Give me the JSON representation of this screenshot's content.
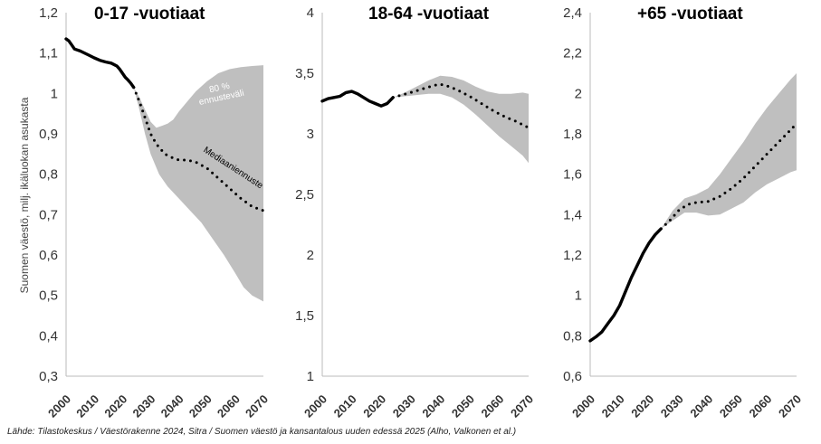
{
  "source_note": "Lähde: Tilastokeskus / Väestörakenne 2024, Sitra / Suomen väestö ja kansantalous uuden edessä 2025 (Alho, Valkonen et al.)",
  "colors": {
    "band": "#bfbfbf",
    "line": "#000000",
    "axis": "#bbbbbb"
  },
  "chart_data": [
    {
      "type": "line",
      "title": "0-17 -vuotiaat",
      "ylabel": "Suomen väestö, milj. ikäluokan asukasta",
      "xlim": [
        2000,
        2070
      ],
      "ylim": [
        0.3,
        1.2
      ],
      "xticks": [
        2000,
        2010,
        2020,
        2030,
        2040,
        2050,
        2060,
        2070
      ],
      "yticks": [
        "0,3",
        "0,4",
        "0,5",
        "0,6",
        "0,7",
        "0,8",
        "0,9",
        "1",
        "1,1",
        "1,2"
      ],
      "ytick_values": [
        0.3,
        0.4,
        0.5,
        0.6,
        0.7,
        0.8,
        0.9,
        1.0,
        1.1,
        1.2
      ],
      "annotations": {
        "band_label": [
          "80 %",
          "ennusteväli"
        ],
        "median_label": "Mediaaniennuste"
      },
      "observed": {
        "x": [
          2000,
          2001,
          2002,
          2003,
          2005,
          2008,
          2010,
          2012,
          2014,
          2016,
          2018,
          2019,
          2020,
          2021,
          2022,
          2023,
          2024
        ],
        "y": [
          1.135,
          1.13,
          1.12,
          1.11,
          1.105,
          1.095,
          1.088,
          1.082,
          1.078,
          1.075,
          1.068,
          1.06,
          1.05,
          1.04,
          1.033,
          1.025,
          1.015
        ]
      },
      "median": {
        "x": [
          2024,
          2026,
          2028,
          2030,
          2032,
          2035,
          2038,
          2040,
          2043,
          2046,
          2050,
          2054,
          2058,
          2062,
          2066,
          2070
        ],
        "y": [
          1.015,
          0.98,
          0.94,
          0.9,
          0.875,
          0.85,
          0.84,
          0.835,
          0.835,
          0.83,
          0.815,
          0.79,
          0.765,
          0.74,
          0.72,
          0.71
        ]
      },
      "band_upper": {
        "x": [
          2024,
          2026,
          2028,
          2030,
          2032,
          2034,
          2036,
          2038,
          2040,
          2043,
          2046,
          2050,
          2054,
          2058,
          2062,
          2066,
          2070
        ],
        "y": [
          1.015,
          0.99,
          0.96,
          0.93,
          0.915,
          0.92,
          0.925,
          0.935,
          0.955,
          0.98,
          1.005,
          1.03,
          1.05,
          1.06,
          1.065,
          1.068,
          1.07
        ]
      },
      "band_lower": {
        "x": [
          2024,
          2026,
          2028,
          2030,
          2033,
          2036,
          2040,
          2044,
          2048,
          2052,
          2056,
          2060,
          2063,
          2066,
          2070
        ],
        "y": [
          1.015,
          0.96,
          0.9,
          0.85,
          0.8,
          0.77,
          0.74,
          0.71,
          0.68,
          0.64,
          0.6,
          0.555,
          0.52,
          0.5,
          0.485
        ]
      }
    },
    {
      "type": "line",
      "title": "18-64 -vuotiaat",
      "xlim": [
        2000,
        2070
      ],
      "ylim": [
        1,
        4
      ],
      "xticks": [
        2000,
        2010,
        2020,
        2030,
        2040,
        2050,
        2060,
        2070
      ],
      "yticks": [
        "1",
        "1,5",
        "2",
        "2,5",
        "3",
        "3,5",
        "4"
      ],
      "ytick_values": [
        1,
        1.5,
        2,
        2.5,
        3,
        3.5,
        4
      ],
      "observed": {
        "x": [
          2000,
          2002,
          2004,
          2006,
          2008,
          2010,
          2012,
          2014,
          2016,
          2018,
          2020,
          2022,
          2024
        ],
        "y": [
          3.27,
          3.29,
          3.3,
          3.31,
          3.34,
          3.35,
          3.33,
          3.3,
          3.27,
          3.25,
          3.23,
          3.25,
          3.3
        ]
      },
      "median": {
        "x": [
          2024,
          2027,
          2030,
          2034,
          2038,
          2040,
          2043,
          2046,
          2050,
          2054,
          2058,
          2062,
          2066,
          2070
        ],
        "y": [
          3.3,
          3.32,
          3.34,
          3.37,
          3.4,
          3.41,
          3.39,
          3.36,
          3.31,
          3.25,
          3.19,
          3.14,
          3.1,
          3.05
        ]
      },
      "band_upper": {
        "x": [
          2024,
          2028,
          2032,
          2036,
          2040,
          2044,
          2048,
          2052,
          2056,
          2060,
          2064,
          2068,
          2070
        ],
        "y": [
          3.3,
          3.34,
          3.39,
          3.44,
          3.48,
          3.47,
          3.44,
          3.39,
          3.35,
          3.33,
          3.33,
          3.34,
          3.33
        ]
      },
      "band_lower": {
        "x": [
          2024,
          2028,
          2032,
          2036,
          2040,
          2044,
          2048,
          2052,
          2056,
          2060,
          2064,
          2068,
          2070
        ],
        "y": [
          3.3,
          3.31,
          3.32,
          3.33,
          3.33,
          3.3,
          3.24,
          3.16,
          3.07,
          2.98,
          2.9,
          2.82,
          2.76
        ]
      }
    },
    {
      "type": "line",
      "title": "+65 -vuotiaat",
      "xlim": [
        2000,
        2070
      ],
      "ylim": [
        0.6,
        2.4
      ],
      "xticks": [
        2000,
        2010,
        2020,
        2030,
        2040,
        2050,
        2060,
        2070
      ],
      "yticks": [
        "0,6",
        "0,8",
        "1",
        "1,2",
        "1,4",
        "1,6",
        "1,8",
        "2",
        "2,2",
        "2,4"
      ],
      "ytick_values": [
        0.6,
        0.8,
        1.0,
        1.2,
        1.4,
        1.6,
        1.8,
        2.0,
        2.2,
        2.4
      ],
      "observed": {
        "x": [
          2000,
          2002,
          2004,
          2006,
          2008,
          2010,
          2012,
          2014,
          2016,
          2018,
          2020,
          2022,
          2024
        ],
        "y": [
          0.775,
          0.795,
          0.82,
          0.86,
          0.9,
          0.95,
          1.02,
          1.09,
          1.15,
          1.21,
          1.26,
          1.3,
          1.33
        ]
      },
      "median": {
        "x": [
          2024,
          2027,
          2030,
          2033,
          2036,
          2040,
          2044,
          2048,
          2052,
          2056,
          2060,
          2064,
          2068,
          2070
        ],
        "y": [
          1.33,
          1.37,
          1.42,
          1.45,
          1.46,
          1.465,
          1.49,
          1.53,
          1.58,
          1.64,
          1.7,
          1.76,
          1.82,
          1.85
        ]
      },
      "band_upper": {
        "x": [
          2024,
          2028,
          2032,
          2036,
          2040,
          2044,
          2048,
          2052,
          2056,
          2060,
          2064,
          2068,
          2070
        ],
        "y": [
          1.33,
          1.42,
          1.48,
          1.5,
          1.53,
          1.6,
          1.68,
          1.76,
          1.85,
          1.93,
          2.0,
          2.07,
          2.1
        ]
      },
      "band_lower": {
        "x": [
          2024,
          2028,
          2032,
          2036,
          2040,
          2044,
          2048,
          2052,
          2056,
          2060,
          2064,
          2068,
          2070
        ],
        "y": [
          1.33,
          1.37,
          1.41,
          1.41,
          1.395,
          1.4,
          1.43,
          1.46,
          1.51,
          1.55,
          1.58,
          1.61,
          1.62
        ]
      }
    }
  ]
}
